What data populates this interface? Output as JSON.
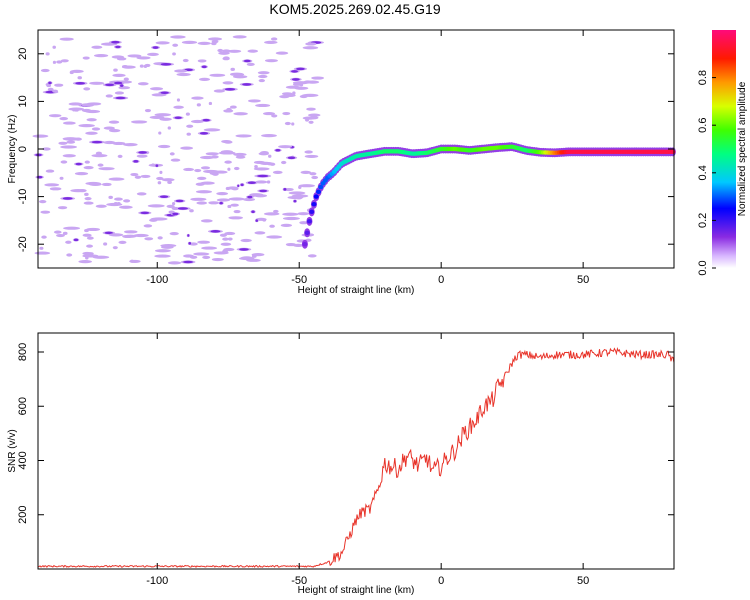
{
  "title": "KOM5.2025.269.02.45.G19",
  "colors": {
    "snr_line": "#e8342a",
    "spectrogram_noise": "#c9a6f2",
    "spectrogram_dot": "#7a2be0"
  },
  "chart_data": [
    {
      "type": "heatmap",
      "name": "spectrogram",
      "xlabel": "Height of straight line (km)",
      "ylabel": "Frequency (Hz)",
      "xlim": [
        -142,
        82
      ],
      "ylim": [
        -25,
        25
      ],
      "x_ticks": [
        -100,
        -50,
        0,
        50
      ],
      "y_ticks": [
        20,
        10,
        0,
        -10,
        -20
      ],
      "x_tick_labels": [
        "-100",
        "-50",
        "0",
        "50"
      ],
      "y_tick_labels": [
        "20",
        "10",
        "0",
        "-10",
        "-20"
      ],
      "colorbar": {
        "label": "Normalized spectral amplitude",
        "range": [
          0,
          1
        ],
        "ticks": [
          0.0,
          0.2,
          0.4,
          0.6,
          0.8
        ],
        "tick_labels": [
          "0.0",
          "0.2",
          "0.4",
          "0.6",
          "0.8"
        ],
        "colormap": "white-lavender-purple-blue-cyan-green-yellow-orange-red-magenta"
      },
      "noise_region_x": [
        -142,
        -43
      ],
      "signal_track": {
        "x": [
          -48,
          -46,
          -44,
          -42,
          -40,
          -38,
          -35,
          -30,
          -25,
          -20,
          -15,
          -10,
          -5,
          0,
          5,
          10,
          15,
          20,
          25,
          30,
          35,
          40,
          45,
          50,
          60,
          70,
          82
        ],
        "frequency": [
          -20,
          -14,
          -10,
          -7.5,
          -6,
          -5,
          -3,
          -1.5,
          -1,
          -0.5,
          -0.5,
          -1,
          -0.8,
          0,
          0,
          -0.3,
          0,
          0.3,
          0.5,
          -0.3,
          -0.7,
          -0.8,
          -0.6,
          -0.6,
          -0.6,
          -0.6,
          -0.6
        ],
        "amplitude": [
          0.15,
          0.2,
          0.25,
          0.3,
          0.3,
          0.35,
          0.4,
          0.45,
          0.45,
          0.5,
          0.5,
          0.45,
          0.5,
          0.55,
          0.6,
          0.55,
          0.6,
          0.6,
          0.55,
          0.5,
          0.6,
          0.8,
          0.95,
          0.95,
          0.95,
          0.95,
          0.95
        ]
      }
    },
    {
      "type": "line",
      "name": "snr",
      "xlabel": "Height of straight line (km)",
      "ylabel": "SNR (v/v)",
      "xlim": [
        -142,
        82
      ],
      "ylim": [
        0,
        870
      ],
      "x_ticks": [
        -100,
        -50,
        0,
        50
      ],
      "y_ticks": [
        200,
        400,
        600,
        800
      ],
      "x_tick_labels": [
        "-100",
        "-50",
        "0",
        "50"
      ],
      "y_tick_labels": [
        "200",
        "400",
        "600",
        "800"
      ],
      "series": [
        {
          "x": [
            -142,
            -120,
            -100,
            -80,
            -60,
            -45,
            -40,
            -35,
            -32,
            -30,
            -28,
            -25,
            -22,
            -20,
            -18,
            -15,
            -12,
            -10,
            -8,
            -5,
            -3,
            0,
            3,
            5,
            8,
            10,
            13,
            15,
            18,
            20,
            22,
            25,
            27,
            30,
            35,
            40,
            50,
            60,
            70,
            80,
            82
          ],
          "values": [
            10,
            10,
            10,
            10,
            10,
            10,
            25,
            60,
            130,
            180,
            210,
            220,
            300,
            390,
            380,
            370,
            420,
            400,
            380,
            410,
            360,
            380,
            420,
            440,
            500,
            520,
            560,
            600,
            620,
            670,
            700,
            760,
            790,
            790,
            780,
            790,
            790,
            800,
            790,
            790,
            760
          ]
        }
      ]
    }
  ]
}
